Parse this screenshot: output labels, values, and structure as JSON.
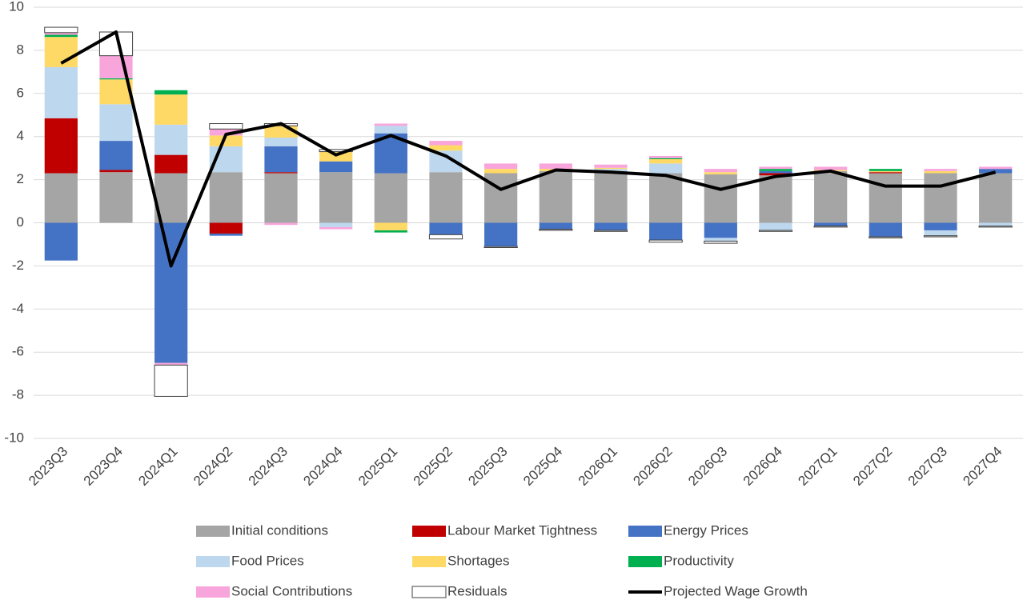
{
  "chart_data": {
    "type": "bar",
    "stacked": true,
    "categories": [
      "2023Q3",
      "2023Q4",
      "2024Q1",
      "2024Q2",
      "2024Q3",
      "2024Q4",
      "2025Q1",
      "2025Q2",
      "2025Q3",
      "2025Q4",
      "2026Q1",
      "2026Q2",
      "2026Q3",
      "2026Q4",
      "2027Q1",
      "2027Q2",
      "2027Q3",
      "2027Q4"
    ],
    "series": [
      {
        "name": "Initial conditions",
        "color": "#a5a5a5",
        "values": [
          2.3,
          2.35,
          2.3,
          2.35,
          2.3,
          2.35,
          2.3,
          2.35,
          2.3,
          2.4,
          2.4,
          2.3,
          2.25,
          2.2,
          2.4,
          2.3,
          2.3,
          2.3
        ]
      },
      {
        "name": "Labour Market Tightness",
        "color": "#c00000",
        "values": [
          2.55,
          0.1,
          0.85,
          -0.5,
          0.05,
          0,
          0,
          0,
          0,
          0,
          0,
          0,
          0,
          0.1,
          0,
          0.05,
          0,
          0
        ]
      },
      {
        "name": "Energy Prices",
        "color": "#4472c4",
        "values": [
          -1.75,
          1.35,
          -6.5,
          -0.1,
          1.2,
          0.5,
          1.85,
          -0.55,
          -1.1,
          -0.3,
          -0.35,
          -0.8,
          -0.7,
          0.1,
          -0.15,
          -0.65,
          -0.35,
          0.2
        ]
      },
      {
        "name": "Food Prices",
        "color": "#bdd7ee",
        "values": [
          2.37,
          1.7,
          1.4,
          1.2,
          0.4,
          -0.2,
          0.35,
          1.0,
          0,
          0,
          0.1,
          0.45,
          -0.15,
          -0.35,
          0,
          0,
          -0.25,
          -0.15
        ]
      },
      {
        "name": "Shortages",
        "color": "#ffd966",
        "values": [
          1.4,
          1.15,
          1.4,
          0.5,
          0.55,
          0.45,
          -0.35,
          0.25,
          0.2,
          0.1,
          0.05,
          0.2,
          0.1,
          0,
          0.05,
          0.05,
          0.1,
          0
        ]
      },
      {
        "name": "Productivity",
        "color": "#00b050",
        "values": [
          0.1,
          0.05,
          0.2,
          0,
          0,
          0,
          -0.1,
          0,
          0,
          0,
          0,
          0.05,
          0,
          0.1,
          0,
          0.1,
          0,
          0
        ]
      },
      {
        "name": "Social Contributions",
        "color": "#f8a5dc",
        "values": [
          0.1,
          1.05,
          -0.1,
          0.3,
          -0.1,
          -0.1,
          0.1,
          0.2,
          0.25,
          0.25,
          0.15,
          0.1,
          0.15,
          0.1,
          0.15,
          0,
          0.1,
          0.1
        ]
      },
      {
        "name": "Residuals",
        "color": "#ffffff",
        "values": [
          0.25,
          1.1,
          -1.45,
          0.25,
          0.1,
          0.1,
          0,
          -0.2,
          -0.05,
          -0.05,
          -0.05,
          -0.1,
          -0.1,
          -0.05,
          -0.05,
          -0.05,
          -0.05,
          -0.05
        ]
      }
    ],
    "line": {
      "name": "Projected Wage Growth",
      "color": "#000000",
      "values": [
        7.4,
        8.85,
        -2.0,
        4.1,
        4.6,
        3.15,
        4.05,
        3.1,
        1.55,
        2.45,
        2.35,
        2.2,
        1.55,
        2.15,
        2.4,
        1.7,
        1.7,
        2.35
      ]
    },
    "ylim": [
      -10,
      10
    ],
    "yticks": [
      -10,
      -8,
      -6,
      -4,
      -2,
      0,
      2,
      4,
      6,
      8,
      10
    ],
    "grid": true,
    "legend": "bottom"
  }
}
